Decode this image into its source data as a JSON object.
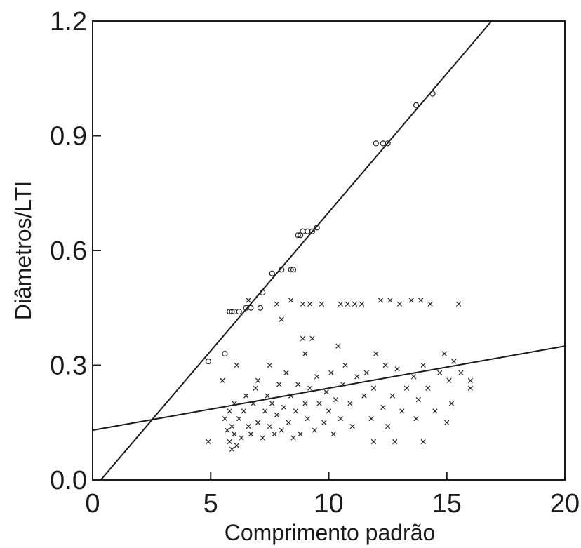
{
  "chart_data": {
    "type": "scatter",
    "title": "",
    "xlabel": "Comprimento padrão",
    "ylabel": "Diâmetros/LTI",
    "xlim": [
      0,
      20
    ],
    "ylim": [
      0.0,
      1.2
    ],
    "x_ticks": [
      "0",
      "5",
      "10",
      "15",
      "20"
    ],
    "y_ticks": [
      "0.0",
      "0.3",
      "0.6",
      "0.9",
      "1.2"
    ],
    "x_tick_values": [
      0,
      5,
      10,
      15,
      20
    ],
    "y_tick_values": [
      0.0,
      0.3,
      0.6,
      0.9,
      1.2
    ],
    "grid": false,
    "legend": "none",
    "series": [
      {
        "marker": "circle",
        "points": [
          [
            4.9,
            0.31
          ],
          [
            5.6,
            0.33
          ],
          [
            5.8,
            0.44
          ],
          [
            5.9,
            0.44
          ],
          [
            6.0,
            0.44
          ],
          [
            6.2,
            0.44
          ],
          [
            6.5,
            0.45
          ],
          [
            6.7,
            0.45
          ],
          [
            7.1,
            0.45
          ],
          [
            7.2,
            0.49
          ],
          [
            7.6,
            0.54
          ],
          [
            8.0,
            0.55
          ],
          [
            8.4,
            0.55
          ],
          [
            8.5,
            0.55
          ],
          [
            8.7,
            0.64
          ],
          [
            8.8,
            0.64
          ],
          [
            8.9,
            0.65
          ],
          [
            9.1,
            0.65
          ],
          [
            9.3,
            0.65
          ],
          [
            9.5,
            0.66
          ],
          [
            12.0,
            0.88
          ],
          [
            12.3,
            0.88
          ],
          [
            12.5,
            0.88
          ],
          [
            13.7,
            0.98
          ],
          [
            14.4,
            1.01
          ]
        ],
        "fit": {
          "intercept": -0.025,
          "slope": 0.0725
        }
      },
      {
        "marker": "x",
        "points": [
          [
            4.9,
            0.1
          ],
          [
            5.5,
            0.26
          ],
          [
            5.6,
            0.16
          ],
          [
            5.7,
            0.13
          ],
          [
            5.8,
            0.1
          ],
          [
            5.8,
            0.18
          ],
          [
            5.9,
            0.08
          ],
          [
            5.9,
            0.14
          ],
          [
            6.0,
            0.2
          ],
          [
            6.0,
            0.12
          ],
          [
            6.1,
            0.09
          ],
          [
            6.1,
            0.3
          ],
          [
            6.2,
            0.16
          ],
          [
            6.3,
            0.11
          ],
          [
            6.4,
            0.18
          ],
          [
            6.5,
            0.22
          ],
          [
            6.6,
            0.47
          ],
          [
            6.6,
            0.14
          ],
          [
            6.7,
            0.12
          ],
          [
            6.8,
            0.2
          ],
          [
            6.9,
            0.24
          ],
          [
            7.0,
            0.15
          ],
          [
            7.0,
            0.26
          ],
          [
            7.2,
            0.11
          ],
          [
            7.3,
            0.18
          ],
          [
            7.4,
            0.22
          ],
          [
            7.5,
            0.14
          ],
          [
            7.5,
            0.3
          ],
          [
            7.6,
            0.2
          ],
          [
            7.7,
            0.12
          ],
          [
            7.8,
            0.17
          ],
          [
            7.8,
            0.46
          ],
          [
            7.9,
            0.25
          ],
          [
            8.0,
            0.42
          ],
          [
            8.0,
            0.13
          ],
          [
            8.1,
            0.19
          ],
          [
            8.2,
            0.28
          ],
          [
            8.3,
            0.15
          ],
          [
            8.4,
            0.22
          ],
          [
            8.4,
            0.47
          ],
          [
            8.5,
            0.11
          ],
          [
            8.6,
            0.18
          ],
          [
            8.7,
            0.25
          ],
          [
            8.8,
            0.12
          ],
          [
            8.9,
            0.46
          ],
          [
            8.9,
            0.37
          ],
          [
            9.0,
            0.2
          ],
          [
            9.0,
            0.33
          ],
          [
            9.1,
            0.16
          ],
          [
            9.2,
            0.24
          ],
          [
            9.2,
            0.46
          ],
          [
            9.3,
            0.37
          ],
          [
            9.4,
            0.13
          ],
          [
            9.5,
            0.27
          ],
          [
            9.6,
            0.2
          ],
          [
            9.7,
            0.46
          ],
          [
            9.8,
            0.15
          ],
          [
            9.9,
            0.23
          ],
          [
            10.0,
            0.18
          ],
          [
            10.1,
            0.28
          ],
          [
            10.2,
            0.12
          ],
          [
            10.3,
            0.21
          ],
          [
            10.4,
            0.35
          ],
          [
            10.5,
            0.46
          ],
          [
            10.5,
            0.16
          ],
          [
            10.6,
            0.25
          ],
          [
            10.7,
            0.3
          ],
          [
            10.8,
            0.46
          ],
          [
            10.9,
            0.2
          ],
          [
            11.0,
            0.14
          ],
          [
            11.1,
            0.46
          ],
          [
            11.2,
            0.27
          ],
          [
            11.4,
            0.46
          ],
          [
            11.5,
            0.22
          ],
          [
            11.6,
            0.28
          ],
          [
            11.8,
            0.16
          ],
          [
            11.9,
            0.1
          ],
          [
            11.9,
            0.24
          ],
          [
            12.0,
            0.33
          ],
          [
            12.2,
            0.47
          ],
          [
            12.3,
            0.19
          ],
          [
            12.4,
            0.3
          ],
          [
            12.5,
            0.14
          ],
          [
            12.6,
            0.47
          ],
          [
            12.7,
            0.22
          ],
          [
            12.8,
            0.1
          ],
          [
            12.9,
            0.29
          ],
          [
            13.0,
            0.46
          ],
          [
            13.1,
            0.18
          ],
          [
            13.3,
            0.24
          ],
          [
            13.5,
            0.47
          ],
          [
            13.6,
            0.27
          ],
          [
            13.7,
            0.16
          ],
          [
            13.8,
            0.21
          ],
          [
            13.9,
            0.47
          ],
          [
            14.0,
            0.1
          ],
          [
            14.0,
            0.3
          ],
          [
            14.2,
            0.24
          ],
          [
            14.3,
            0.46
          ],
          [
            14.5,
            0.18
          ],
          [
            14.7,
            0.28
          ],
          [
            14.9,
            0.33
          ],
          [
            15.0,
            0.15
          ],
          [
            15.1,
            0.26
          ],
          [
            15.2,
            0.2
          ],
          [
            15.3,
            0.31
          ],
          [
            15.5,
            0.46
          ],
          [
            15.6,
            0.28
          ],
          [
            16.0,
            0.26
          ],
          [
            16.0,
            0.24
          ]
        ],
        "fit": {
          "intercept": 0.13,
          "slope": 0.011
        }
      }
    ]
  }
}
